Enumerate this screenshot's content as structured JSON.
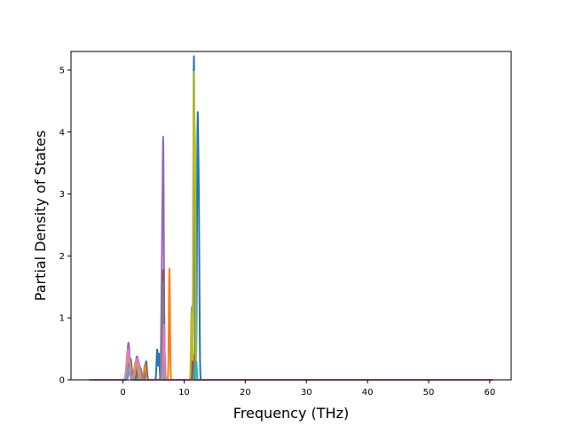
{
  "chart_data": {
    "type": "line",
    "title": "",
    "xlabel": "Frequency (THz)",
    "ylabel": "Partial Density of States",
    "xlim": [
      -8.5,
      63.5
    ],
    "ylim": [
      0,
      5.3
    ],
    "xticks": [
      0,
      10,
      20,
      30,
      40,
      50,
      60
    ],
    "yticks": [
      0,
      1,
      2,
      3,
      4,
      5
    ],
    "grid": false,
    "x_range": [
      -5.5,
      60.5
    ],
    "series": [
      {
        "color": "#1f77b4",
        "peaks": [
          [
            1.2,
            0.35,
            0.22
          ],
          [
            2.4,
            0.28,
            0.3
          ],
          [
            3.8,
            0.3,
            0.12
          ],
          [
            5.6,
            0.5,
            0.1
          ],
          [
            5.9,
            0.42,
            0.08
          ],
          [
            6.7,
            1.35,
            0.07
          ],
          [
            11.6,
            0.22,
            0.06
          ],
          [
            11.6,
            5.05,
            0.1
          ],
          [
            12.2,
            3.88,
            0.1
          ],
          [
            12.4,
            2.6,
            0.1
          ]
        ]
      },
      {
        "color": "#ff7f0e",
        "peaks": [
          [
            0.8,
            0.42,
            0.22
          ],
          [
            2.1,
            0.3,
            0.25
          ],
          [
            3.6,
            0.25,
            0.15
          ],
          [
            7.6,
            1.8,
            0.09
          ],
          [
            11.4,
            0.55,
            0.08
          ],
          [
            11.8,
            0.2,
            0.06
          ]
        ]
      },
      {
        "color": "#2ca02c",
        "peaks": [
          [
            1.0,
            0.3,
            0.2
          ],
          [
            2.5,
            0.22,
            0.3
          ],
          [
            6.4,
            0.3,
            0.12
          ],
          [
            11.3,
            1.2,
            0.08
          ],
          [
            11.9,
            0.5,
            0.07
          ]
        ]
      },
      {
        "color": "#d62728",
        "peaks": [
          [
            0.9,
            0.25,
            0.2
          ],
          [
            2.3,
            0.2,
            0.3
          ],
          [
            6.5,
            0.4,
            0.1
          ],
          [
            11.5,
            0.35,
            0.08
          ]
        ]
      },
      {
        "color": "#9467bd",
        "peaks": [
          [
            0.9,
            0.6,
            0.2
          ],
          [
            2.3,
            0.38,
            0.26
          ],
          [
            6.6,
            3.38,
            0.1
          ],
          [
            6.4,
            1.9,
            0.12
          ]
        ]
      },
      {
        "color": "#8c564b",
        "peaks": [
          [
            1.1,
            0.3,
            0.2
          ],
          [
            2.6,
            0.25,
            0.25
          ],
          [
            6.6,
            1.8,
            0.1
          ],
          [
            11.2,
            0.3,
            0.08
          ]
        ]
      },
      {
        "color": "#7f7f7f",
        "peaks": [
          [
            1.2,
            0.28,
            0.22
          ],
          [
            2.8,
            0.2,
            0.25
          ],
          [
            6.5,
            1.6,
            0.12
          ],
          [
            11.7,
            0.4,
            0.07
          ]
        ]
      },
      {
        "color": "#bcbd22",
        "peaks": [
          [
            0.9,
            0.45,
            0.22
          ],
          [
            2.2,
            0.3,
            0.25
          ],
          [
            6.8,
            0.5,
            0.1
          ],
          [
            11.6,
            4.8,
            0.09
          ],
          [
            11.8,
            3.4,
            0.08
          ],
          [
            11.2,
            1.1,
            0.08
          ]
        ]
      },
      {
        "color": "#17becf",
        "peaks": [
          [
            1.0,
            0.2,
            0.2
          ],
          [
            6.6,
            0.45,
            0.1
          ],
          [
            12.0,
            0.3,
            0.08
          ]
        ]
      },
      {
        "color": "#e377c2",
        "peaks": [
          [
            0.8,
            0.5,
            0.2
          ],
          [
            2.4,
            0.35,
            0.28
          ],
          [
            6.7,
            0.9,
            0.1
          ]
        ]
      }
    ]
  }
}
